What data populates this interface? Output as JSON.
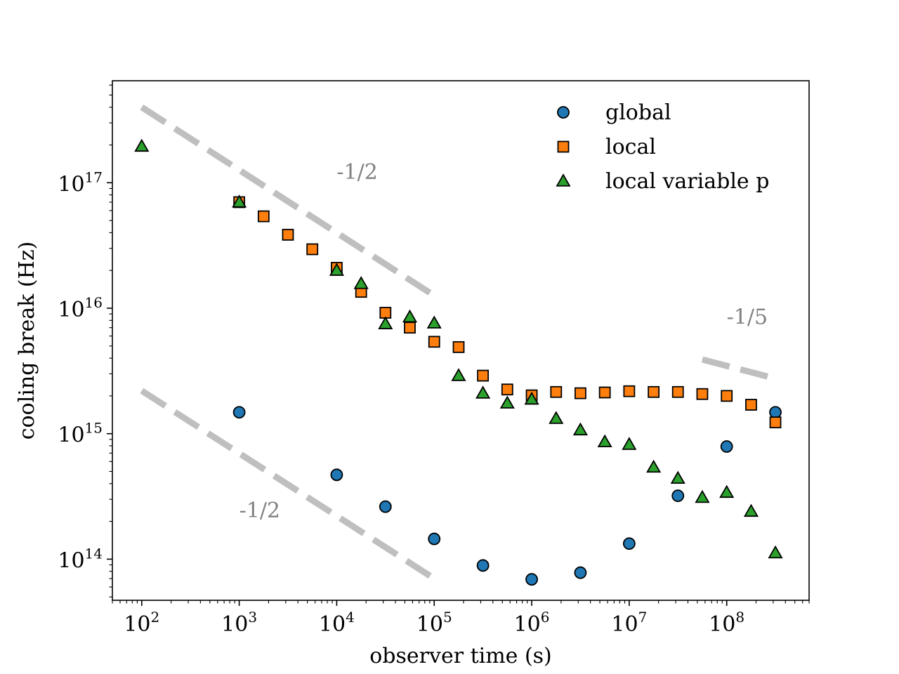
{
  "chart_data": {
    "type": "scatter",
    "title": "",
    "xlabel": "observer time (s)",
    "ylabel": "cooling break (Hz)",
    "xscale": "log",
    "yscale": "log",
    "xlim": [
      50,
      700000000
    ],
    "ylim": [
      47000000000000,
      650000000000000000
    ],
    "x_ticks": [
      100,
      1000,
      10000,
      100000,
      1000000,
      10000000,
      100000000
    ],
    "x_tick_labels": [
      {
        "base": "10",
        "exp": "2"
      },
      {
        "base": "10",
        "exp": "3"
      },
      {
        "base": "10",
        "exp": "4"
      },
      {
        "base": "10",
        "exp": "5"
      },
      {
        "base": "10",
        "exp": "6"
      },
      {
        "base": "10",
        "exp": "7"
      },
      {
        "base": "10",
        "exp": "8"
      }
    ],
    "y_ticks": [
      100000000000000,
      1000000000000000,
      10000000000000000,
      100000000000000000
    ],
    "y_tick_labels": [
      {
        "base": "10",
        "exp": "14"
      },
      {
        "base": "10",
        "exp": "15"
      },
      {
        "base": "10",
        "exp": "16"
      },
      {
        "base": "10",
        "exp": "17"
      }
    ],
    "grid": false,
    "legend_position": "top-right",
    "series": [
      {
        "name": "global",
        "marker": "circle",
        "color": "#1f77b4",
        "points": [
          [
            1000,
            1480000000000000.0
          ],
          [
            10000,
            470000000000000.0
          ],
          [
            31600,
            262000000000000.0
          ],
          [
            100000,
            145000000000000.0
          ],
          [
            316000,
            89000000000000.0
          ],
          [
            1000000,
            69000000000000.0
          ],
          [
            3160000,
            78000000000000.0
          ],
          [
            10000000,
            133000000000000.0
          ],
          [
            31600000,
            320000000000000.0
          ],
          [
            100000000,
            790000000000000.0
          ],
          [
            316000000,
            1480000000000000.0
          ]
        ]
      },
      {
        "name": "local",
        "marker": "square",
        "color": "#ff7f0e",
        "points": [
          [
            1000,
            7e+16
          ],
          [
            1780,
            5.4e+16
          ],
          [
            3160,
            3.85e+16
          ],
          [
            5620,
            2.95e+16
          ],
          [
            10000,
            2.1e+16
          ],
          [
            17800,
            1.35e+16
          ],
          [
            31600,
            9200000000000000.0
          ],
          [
            56200,
            7000000000000000.0
          ],
          [
            100000,
            5400000000000000.0
          ],
          [
            178000,
            4900000000000000.0
          ],
          [
            316000,
            2900000000000000.0
          ],
          [
            562000,
            2250000000000000.0
          ],
          [
            1000000,
            2020000000000000.0
          ],
          [
            1780000,
            2150000000000000.0
          ],
          [
            3160000,
            2100000000000000.0
          ],
          [
            5620000,
            2130000000000000.0
          ],
          [
            10000000,
            2180000000000000.0
          ],
          [
            17800000,
            2150000000000000.0
          ],
          [
            31600000,
            2150000000000000.0
          ],
          [
            56200000,
            2070000000000000.0
          ],
          [
            100000000,
            2000000000000000.0
          ],
          [
            178000000,
            1700000000000000.0
          ],
          [
            316000000,
            1230000000000000.0
          ]
        ]
      },
      {
        "name": "local variable p",
        "marker": "triangle",
        "color": "#2ca02c",
        "points": [
          [
            100,
            1.95e+17
          ],
          [
            1000,
            7e+16
          ],
          [
            10000,
            2e+16
          ],
          [
            17800,
            1.57e+16
          ],
          [
            31600,
            7500000000000000.0
          ],
          [
            56200,
            8500000000000000.0
          ],
          [
            100000,
            7600000000000000.0
          ],
          [
            178000,
            2900000000000000.0
          ],
          [
            316000,
            2100000000000000.0
          ],
          [
            562000,
            1750000000000000.0
          ],
          [
            1000000,
            1880000000000000.0
          ],
          [
            1780000,
            1320000000000000.0
          ],
          [
            3160000,
            1070000000000000.0
          ],
          [
            5620000,
            860000000000000.0
          ],
          [
            10000000,
            820000000000000.0
          ],
          [
            17800000,
            540000000000000.0
          ],
          [
            31600000,
            440000000000000.0
          ],
          [
            56200000,
            310000000000000.0
          ],
          [
            100000000,
            340000000000000.0
          ],
          [
            178000000,
            240000000000000.0
          ],
          [
            316000000,
            112000000000000.0
          ]
        ]
      }
    ],
    "reference_lines": [
      {
        "slope_label": "-1/2",
        "color": "#bfbfbf",
        "from": [
          100,
          4e+17
        ],
        "to": [
          100000,
          1.26e+16
        ],
        "label_at": [
          10000,
          1.07e+17
        ]
      },
      {
        "slope_label": "-1/2",
        "color": "#bfbfbf",
        "from": [
          100,
          2200000000000000.0
        ],
        "to": [
          100000,
          70000000000000.0
        ],
        "label_at": [
          1000,
          215000000000000.0
        ]
      },
      {
        "slope_label": "-1/5",
        "color": "#bfbfbf",
        "from": [
          56200000,
          3900000000000000.0
        ],
        "to": [
          316000000,
          2750000000000000.0
        ],
        "label_at": [
          100000000,
          7500000000000000.0
        ]
      }
    ]
  }
}
